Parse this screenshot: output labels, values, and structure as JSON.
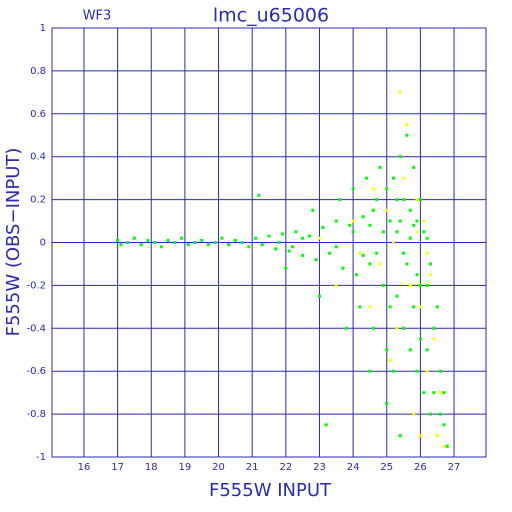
{
  "chart_data": {
    "type": "scatter",
    "title": "lmc_u65006",
    "subtitle": "WF3",
    "x_label": "F555W INPUT",
    "y_label": "F555W (OBS−INPUT)",
    "xlim": [
      15.05,
      27.95
    ],
    "ylim": [
      -1,
      1
    ],
    "xticks": [
      16,
      17,
      18,
      19,
      20,
      21,
      22,
      23,
      24,
      25,
      26,
      27
    ],
    "yticks": [
      -1,
      -0.8,
      -0.6,
      -0.4,
      -0.2,
      0,
      0.2,
      0.4,
      0.6,
      0.8,
      1
    ],
    "grid": true,
    "axis_color": "#2a2ab8",
    "series": [
      {
        "color": "#00ff00",
        "x": [
          17.0,
          17.1,
          17.3,
          17.5,
          17.7,
          17.9,
          18.1,
          18.3,
          18.5,
          18.7,
          18.9,
          19.1,
          19.3,
          19.5,
          19.7,
          19.9,
          20.1,
          20.3,
          20.5,
          20.7,
          20.9,
          21.1,
          21.3,
          21.5,
          21.7,
          21.9,
          22.1,
          22.3,
          22.5,
          22.7,
          22.9,
          23.1,
          23.3,
          23.5,
          23.7,
          23.9,
          24.1,
          24.3,
          24.5,
          24.7,
          24.9,
          25.0,
          25.1,
          25.2,
          25.3,
          25.4,
          25.5,
          25.6,
          25.7,
          25.8,
          25.9,
          26.0,
          26.1,
          26.2,
          26.3,
          26.4,
          26.5,
          26.6,
          26.7,
          26.8,
          21.2,
          22.0,
          22.8,
          23.0,
          23.6,
          24.0,
          24.2,
          24.4,
          24.6,
          24.8,
          25.0,
          25.2,
          25.4,
          25.5,
          25.6,
          25.7,
          25.8,
          25.9,
          26.0,
          26.1,
          26.2,
          26.3,
          26.4,
          26.5,
          26.6,
          25.3,
          25.1,
          24.9,
          24.7,
          24.5,
          24.3,
          25.5,
          25.7,
          25.9,
          23.8,
          24.5,
          25.0,
          25.4,
          26.0,
          26.7,
          23.2,
          24.0,
          23.5,
          22.5,
          21.8,
          22.2,
          26.2,
          25.8,
          25.3,
          24.6
        ],
        "values": [
          0.01,
          -0.01,
          0.0,
          0.02,
          -0.01,
          0.01,
          0.0,
          -0.02,
          0.01,
          0.0,
          0.02,
          -0.01,
          0.0,
          0.01,
          -0.01,
          0.0,
          0.02,
          -0.01,
          0.01,
          0.0,
          -0.02,
          0.02,
          -0.01,
          0.03,
          -0.03,
          0.04,
          -0.04,
          0.05,
          -0.06,
          0.03,
          -0.08,
          0.07,
          -0.05,
          0.1,
          -0.12,
          0.08,
          -0.15,
          0.12,
          -0.1,
          0.2,
          -0.2,
          0.25,
          -0.3,
          0.3,
          -0.25,
          0.4,
          -0.4,
          0.5,
          -0.5,
          0.35,
          -0.6,
          0.2,
          -0.7,
          -0.2,
          -0.8,
          -0.4,
          -0.9,
          -0.6,
          -0.85,
          -0.95,
          0.22,
          -0.12,
          0.15,
          -0.25,
          0.2,
          0.25,
          -0.3,
          0.3,
          -0.4,
          0.35,
          -0.5,
          -0.6,
          0.1,
          0.2,
          -0.1,
          0.15,
          -0.3,
          0.1,
          -0.2,
          0.05,
          -0.5,
          -0.1,
          -0.7,
          -0.3,
          -0.8,
          0.05,
          0.1,
          0.05,
          -0.05,
          0.08,
          -0.06,
          -0.05,
          0.02,
          -0.15,
          -0.4,
          -0.6,
          -0.75,
          -0.9,
          -0.45,
          -0.7,
          -0.85,
          0.05,
          -0.02,
          0.02,
          0.0,
          -0.02,
          0.02,
          0.08,
          0.2,
          0.15
        ]
      },
      {
        "color": "#ffff00",
        "x": [
          23.5,
          24.0,
          24.5,
          25.0,
          25.3,
          25.5,
          25.7,
          25.9,
          26.0,
          26.1,
          26.2,
          26.3,
          26.4,
          26.5,
          26.6,
          25.6,
          25.4,
          25.8,
          26.0,
          24.8,
          25.2,
          25.9,
          26.2,
          23.0,
          24.2,
          26.7,
          25.1,
          24.6
        ],
        "values": [
          -0.2,
          0.1,
          -0.3,
          0.15,
          -0.4,
          0.3,
          -0.2,
          0.05,
          -0.3,
          0.1,
          -0.6,
          -0.15,
          -0.45,
          -0.9,
          -0.7,
          0.55,
          0.7,
          -0.8,
          -0.9,
          -0.1,
          0.0,
          0.2,
          -0.05,
          0.02,
          -0.05,
          -0.95,
          -0.55,
          0.25
        ]
      }
    ]
  }
}
